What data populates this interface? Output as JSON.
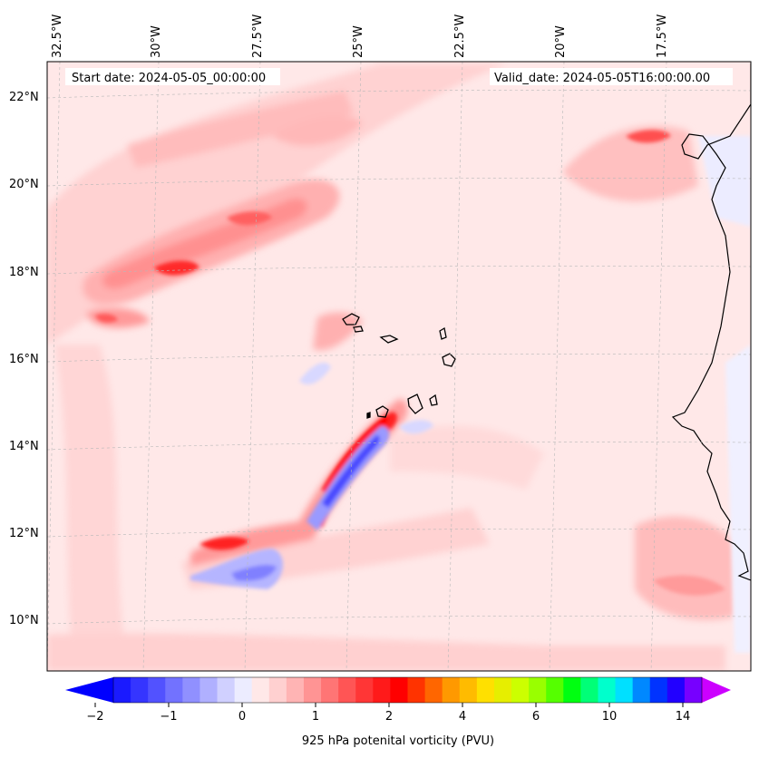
{
  "header": {
    "start_date": "Start date: 2024-05-05_00:00:00",
    "valid_date": "Valid_date: 2024-05-05T16:00:00.00"
  },
  "map": {
    "longitude_labels": [
      "32.5°W",
      "30°W",
      "27.5°W",
      "25°W",
      "22.5°W",
      "20°W",
      "17.5°W"
    ],
    "latitude_labels": [
      "22°N",
      "20°N",
      "18°N",
      "16°N",
      "14°N",
      "12°N",
      "10°N"
    ],
    "field": "925 hPa potential vorticity",
    "background_color": "#ffe8e8"
  },
  "colorbar": {
    "title": "925 hPa potenital vorticity (PVU)",
    "tick_labels": [
      "−2",
      "−1",
      "0",
      "1",
      "2",
      "4",
      "6",
      "10",
      "14"
    ],
    "under_color": "#0000ff",
    "over_color": "#cc00ff",
    "colors": [
      "#1a1aff",
      "#3535ff",
      "#5252ff",
      "#7272ff",
      "#9090ff",
      "#b0b0ff",
      "#d0d0ff",
      "#ececff",
      "#ffe8e8",
      "#ffd0d0",
      "#ffb4b4",
      "#ff9494",
      "#ff7575",
      "#ff5555",
      "#ff3636",
      "#ff1a1a",
      "#ff0000",
      "#ff3300",
      "#ff6600",
      "#ff9900",
      "#ffbb00",
      "#ffe000",
      "#e6ee00",
      "#ccff00",
      "#99ff00",
      "#55ff00",
      "#00ff11",
      "#00ff77",
      "#00ffcc",
      "#00e0ff",
      "#0088ff",
      "#0033ff",
      "#2200ff",
      "#7700ff"
    ]
  }
}
